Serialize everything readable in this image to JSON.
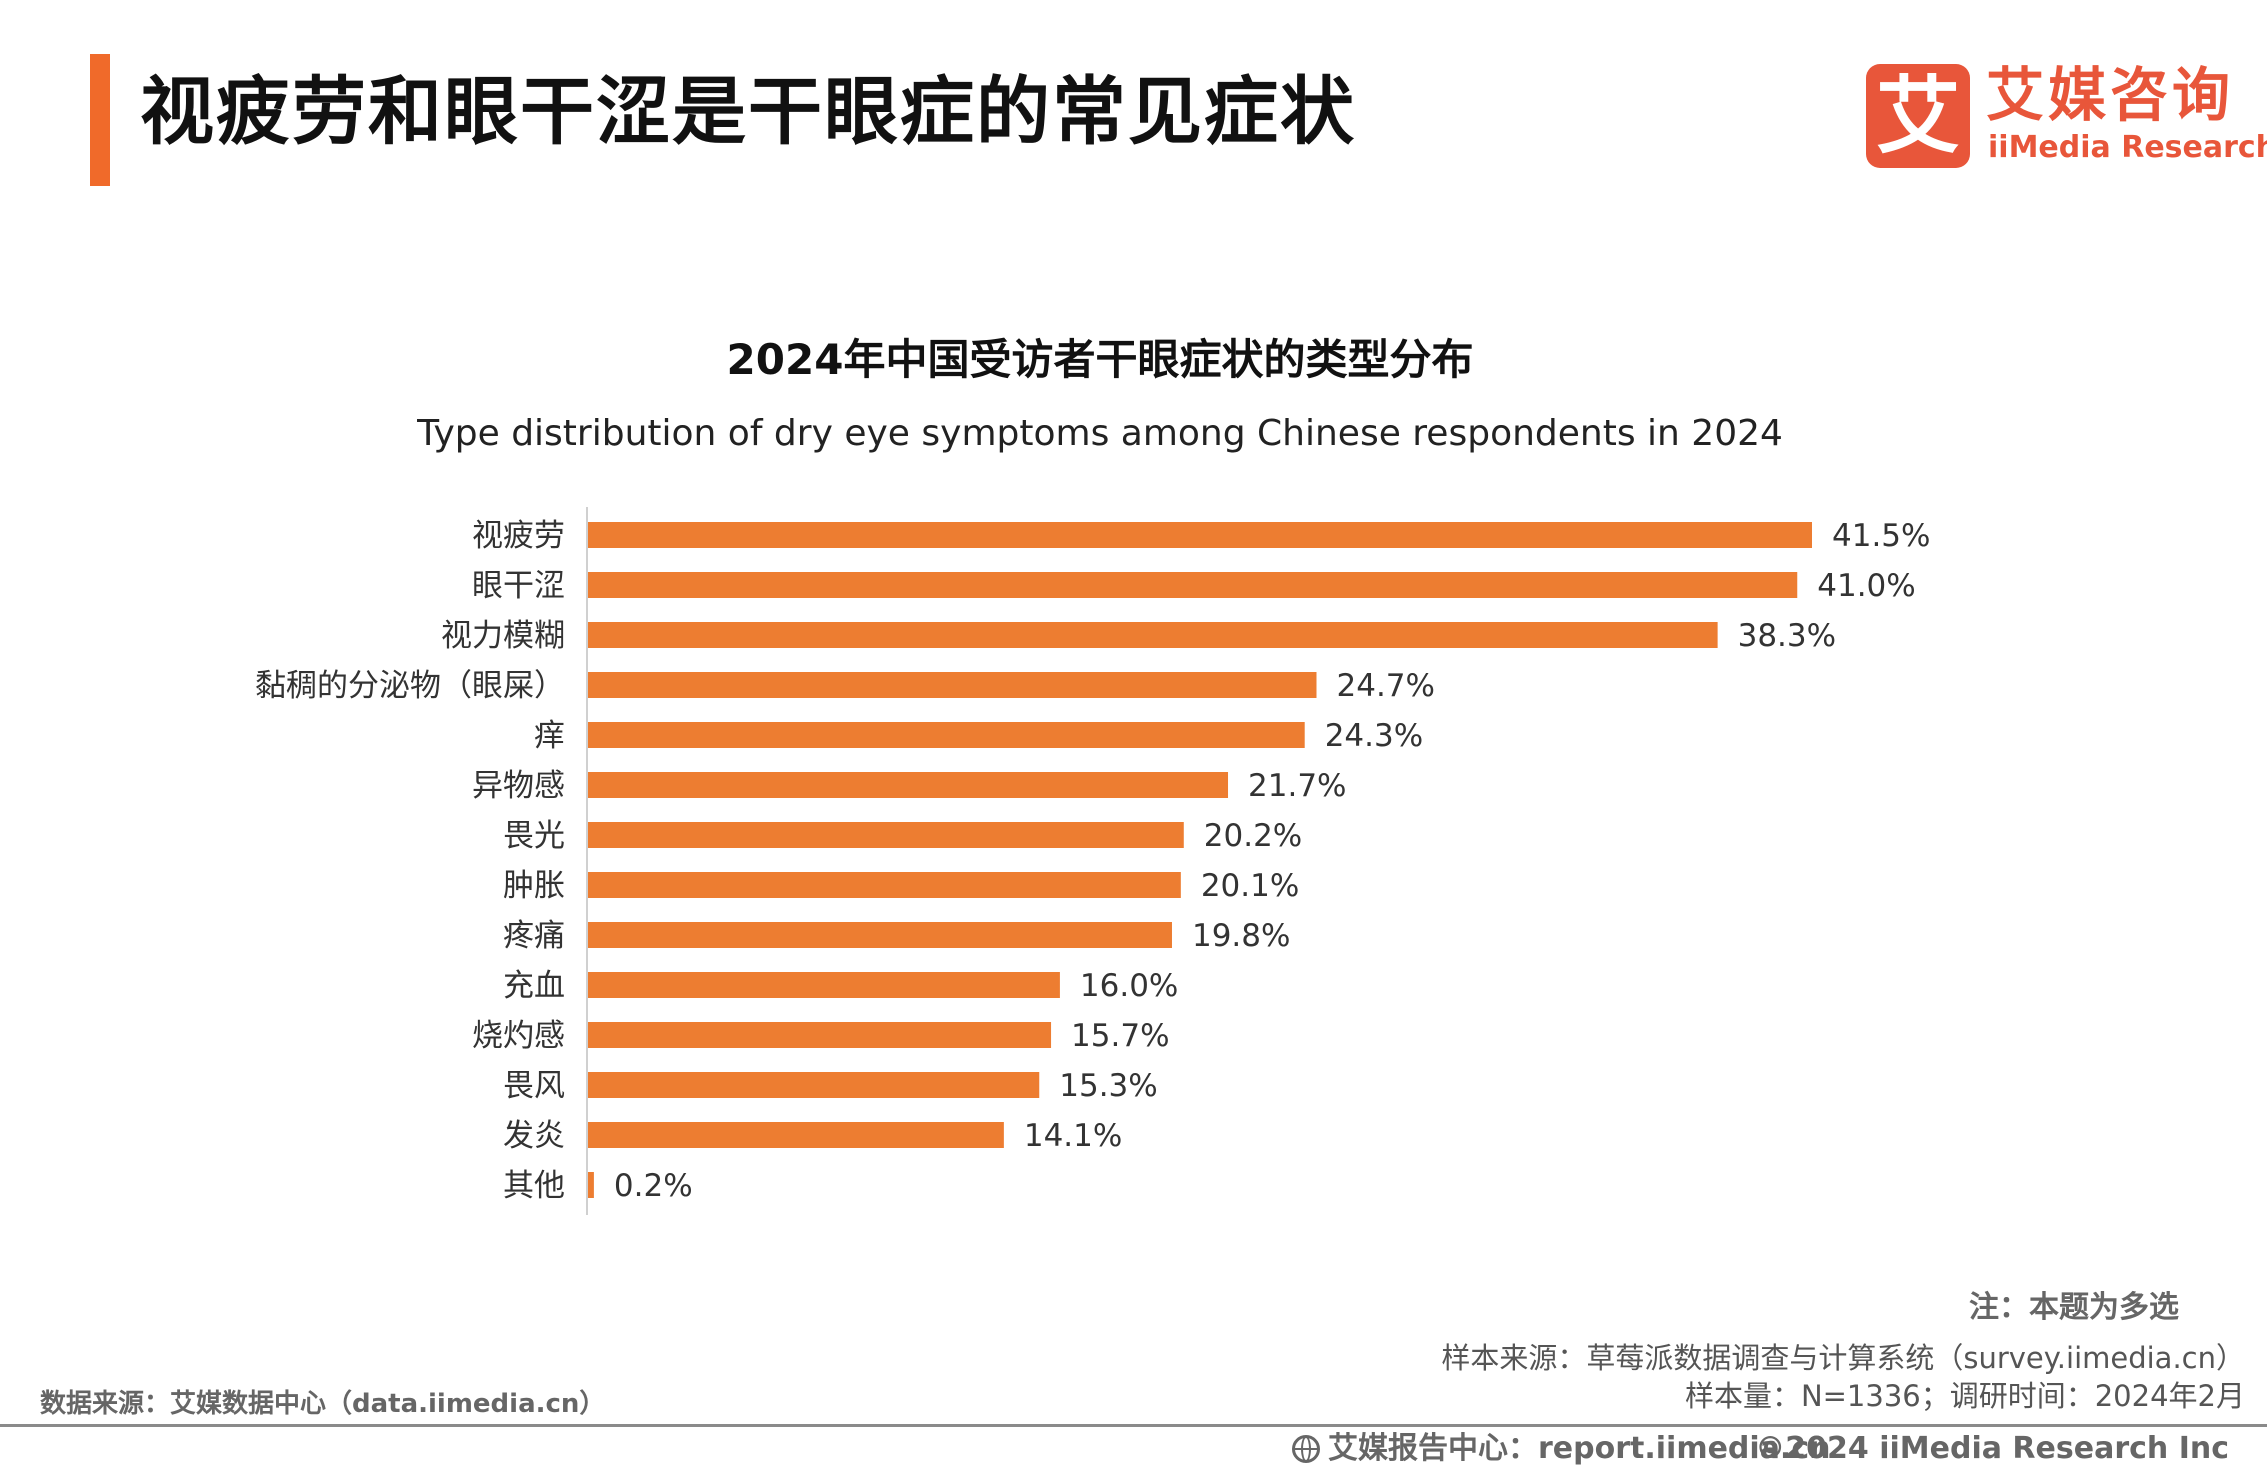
{
  "header": {
    "title": "视疲劳和眼干涩是干眼症的常见症状"
  },
  "logo": {
    "mark": "艾",
    "name_cn": "艾媒咨询",
    "name_en": "iiMedia Research",
    "color": "#e8563a"
  },
  "chart_data": {
    "type": "bar",
    "orientation": "horizontal",
    "title": "2024年中国受访者干眼症状的类型分布",
    "subtitle": "Type distribution of dry eye symptoms among Chinese respondents in 2024",
    "categories": [
      "视疲劳",
      "眼干涩",
      "视力模糊",
      "黏稠的分泌物（眼屎）",
      "痒",
      "异物感",
      "畏光",
      "肿胀",
      "疼痛",
      "充血",
      "烧灼感",
      "畏风",
      "发炎",
      "其他"
    ],
    "values": [
      41.5,
      41.0,
      38.3,
      24.7,
      24.3,
      21.7,
      20.2,
      20.1,
      19.8,
      16.0,
      15.7,
      15.3,
      14.1,
      0.2
    ],
    "value_labels": [
      "41.5%",
      "41.0%",
      "38.3%",
      "24.7%",
      "24.3%",
      "21.7%",
      "20.2%",
      "20.1%",
      "19.8%",
      "16.0%",
      "15.7%",
      "15.3%",
      "14.1%",
      "0.2%"
    ],
    "unit": "%",
    "xlim": [
      0,
      100
    ],
    "grid": false,
    "legend": "none",
    "bar_color": "#ed7d31"
  },
  "notes": {
    "note": "注：本题为多选",
    "sample_source": "样本来源：草莓派数据调查与计算系统（survey.iimedia.cn）",
    "sample_size": "样本量：N=1336；调研时间：2024年2月",
    "data_source": "数据来源：艾媒数据中心（data.iimedia.cn）"
  },
  "footer": {
    "report_center": "艾媒报告中心：report.iimedia.cn",
    "copyright": "©2024  iiMedia Research  Inc"
  }
}
